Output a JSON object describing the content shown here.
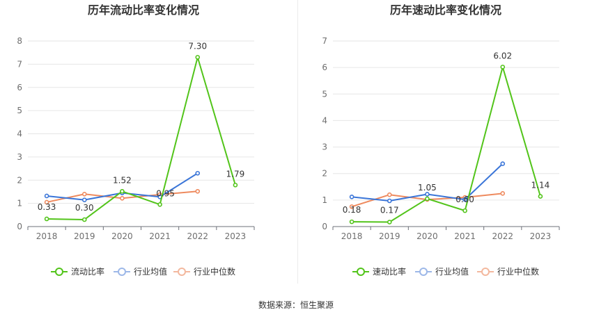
{
  "colors": {
    "series1": "#52c41a",
    "industry_avg": "#3a75d8",
    "industry_median": "#ee8a5e",
    "legend_avg": "#9db8e8",
    "legend_median": "#f3b89e"
  },
  "chart_data": [
    {
      "type": "line",
      "title": "历年流动比率变化情况",
      "categories": [
        "2018",
        "2019",
        "2020",
        "2021",
        "2022",
        "2023"
      ],
      "ylim": [
        0,
        8
      ],
      "yticks": [
        0,
        1,
        2,
        3,
        4,
        5,
        6,
        7,
        8
      ],
      "grid": true,
      "legend_position": "bottom",
      "series": [
        {
          "name": "流动比率",
          "values": [
            0.33,
            0.3,
            1.52,
            0.95,
            7.3,
            1.79
          ],
          "labels": [
            "0.33",
            "0.30",
            "1.52",
            "0.95",
            "7.30",
            "1.79"
          ]
        },
        {
          "name": "行业均值",
          "values": [
            1.32,
            1.15,
            1.45,
            1.28,
            2.3,
            null
          ]
        },
        {
          "name": "行业中位数",
          "values": [
            1.05,
            1.4,
            1.22,
            1.38,
            1.52,
            null
          ]
        }
      ]
    },
    {
      "type": "line",
      "title": "历年速动比率变化情况",
      "categories": [
        "2018",
        "2019",
        "2020",
        "2021",
        "2022",
        "2023"
      ],
      "ylim": [
        0,
        7
      ],
      "yticks": [
        0,
        1,
        2,
        3,
        4,
        5,
        6,
        7
      ],
      "grid": true,
      "legend_position": "bottom",
      "series": [
        {
          "name": "速动比率",
          "values": [
            0.18,
            0.17,
            1.05,
            0.6,
            6.02,
            1.14
          ],
          "labels": [
            "0.18",
            "0.17",
            "1.05",
            "0.60",
            "6.02",
            "1.14"
          ]
        },
        {
          "name": "行业均值",
          "values": [
            1.12,
            0.97,
            1.22,
            1.02,
            2.37,
            null
          ]
        },
        {
          "name": "行业中位数",
          "values": [
            0.75,
            1.2,
            1.02,
            1.1,
            1.25,
            null
          ]
        }
      ]
    }
  ],
  "footer": {
    "source": "数据来源：恒生聚源"
  }
}
